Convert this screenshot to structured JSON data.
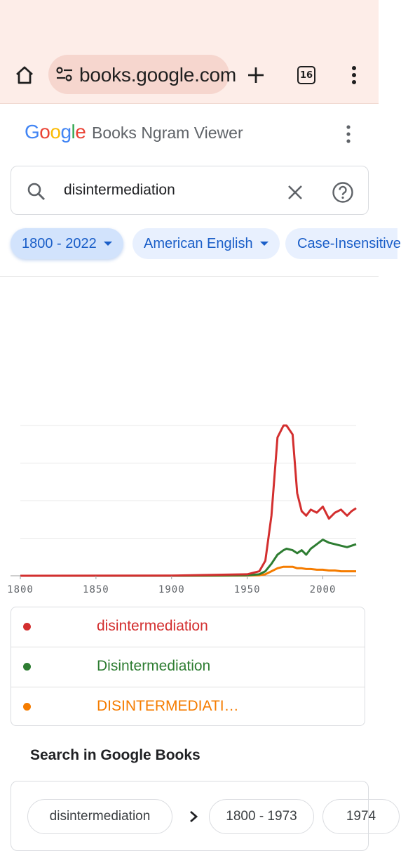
{
  "browser": {
    "url": "books.google.com",
    "tab_count": "16"
  },
  "header": {
    "logo": "Google",
    "title": "Books Ngram Viewer"
  },
  "search": {
    "query": "disintermediation"
  },
  "filters": [
    {
      "label": "1800 - 2022"
    },
    {
      "label": "American English"
    },
    {
      "label": "Case-Insensitive"
    }
  ],
  "chart_data": {
    "type": "line",
    "x": [
      1800,
      1900,
      1950,
      1958,
      1962,
      1966,
      1970,
      1974,
      1976,
      1980,
      1983,
      1986,
      1989,
      1992,
      1996,
      2000,
      2004,
      2008,
      2012,
      2016,
      2019,
      2022
    ],
    "xticks": [
      "1800",
      "1850",
      "1900",
      "1950",
      "2000"
    ],
    "xlim": [
      1800,
      2022
    ],
    "ylim": [
      0,
      100
    ],
    "grid": true,
    "series": [
      {
        "name": "disintermediation",
        "color": "#d32f2f",
        "values": [
          0,
          0.1,
          1,
          3,
          10,
          40,
          92,
          100,
          100,
          94,
          55,
          43,
          40,
          44,
          42,
          46,
          38,
          42,
          44,
          40,
          43,
          45
        ]
      },
      {
        "name": "Disintermediation",
        "color": "#2e7d32",
        "values": [
          0,
          0,
          0.3,
          1,
          3,
          8,
          14,
          17,
          18,
          17,
          15,
          17,
          14,
          18,
          21,
          24,
          22,
          21,
          20,
          19,
          20,
          21
        ]
      },
      {
        "name": "DISINTERMEDIATI…",
        "color": "#f57c00",
        "values": [
          0,
          0,
          0.1,
          0.3,
          1,
          3,
          5,
          6,
          6,
          6,
          5,
          5,
          4.5,
          4.5,
          4,
          4,
          3.5,
          3.5,
          3,
          3,
          3,
          3
        ]
      }
    ]
  },
  "google_books": {
    "title": "Search in Google Books",
    "chips": [
      "disintermediation",
      "1800 - 1973",
      "1974"
    ]
  }
}
